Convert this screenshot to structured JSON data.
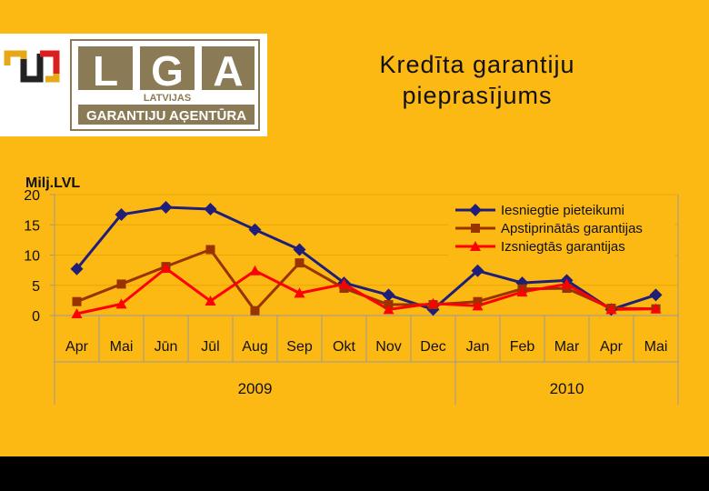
{
  "slide": {
    "title_line1": "Kredīta garantiju",
    "title_line2": "pieprasījums",
    "background_color": "#FDB913"
  },
  "logo": {
    "letters": [
      "L",
      "G",
      "A"
    ],
    "line1": "LATVIJAS",
    "line2": "GARANTIJU AĢENTŪRA",
    "brand_color": "#8B7A56"
  },
  "chart_data": {
    "type": "line",
    "ylabel": "Milj.LVL",
    "ylim": [
      0,
      20
    ],
    "yticks": [
      0,
      5,
      10,
      15,
      20
    ],
    "categories": [
      "Apr",
      "Mai",
      "Jūn",
      "Jūl",
      "Aug",
      "Sep",
      "Okt",
      "Nov",
      "Dec",
      "Jan",
      "Feb",
      "Mar",
      "Apr",
      "Mai"
    ],
    "year_groups": [
      {
        "label": "2009",
        "start": 0,
        "end": 8
      },
      {
        "label": "2010",
        "start": 9,
        "end": 13
      }
    ],
    "legend_position": "top-right",
    "series": [
      {
        "name": "Iesniegtie pieteikumi",
        "color": "#1F1F7A",
        "marker": "diamond",
        "values": [
          7.7,
          16.7,
          17.9,
          17.6,
          14.2,
          10.9,
          5.4,
          3.4,
          1.0,
          7.4,
          5.4,
          5.8,
          1.0,
          3.4
        ]
      },
      {
        "name": "Apstiprinātās garantijas",
        "color": "#993300",
        "marker": "square",
        "values": [
          2.3,
          5.2,
          8.1,
          10.9,
          0.8,
          8.7,
          4.5,
          1.8,
          1.8,
          2.3,
          4.4,
          4.5,
          1.2,
          1.1
        ]
      },
      {
        "name": "Izsniegtās garantijas",
        "color": "#FF0000",
        "marker": "triangle",
        "values": [
          0.3,
          1.9,
          7.8,
          2.4,
          7.4,
          3.7,
          5.2,
          1.0,
          2.0,
          1.6,
          3.9,
          5.2,
          1.0,
          1.1
        ]
      }
    ]
  }
}
